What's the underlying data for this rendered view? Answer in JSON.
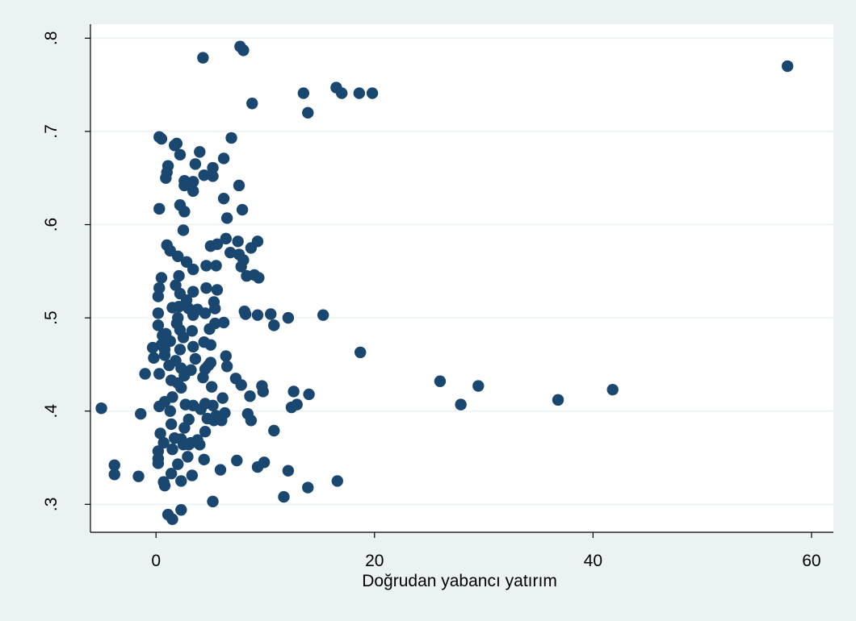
{
  "chart_data": {
    "type": "scatter",
    "title": "",
    "xlabel": "Doğrudan yabancı yatırım",
    "ylabel": "",
    "xlim": [
      -6,
      62
    ],
    "ylim": [
      0.27,
      0.815
    ],
    "xticks": [
      0,
      20,
      40,
      60
    ],
    "xtick_labels": [
      "0",
      "20",
      "40",
      "60"
    ],
    "yticks": [
      0.3,
      0.4,
      0.5,
      0.6,
      0.7,
      0.8
    ],
    "ytick_labels": [
      ".3",
      ".4",
      ".5",
      ".6",
      ".7",
      ".8"
    ],
    "grid": "horizontal",
    "colors": {
      "background": "#eaf2f3",
      "plot_background": "#ffffff",
      "marker": "#1a476f",
      "grid": "#eaf2f3"
    },
    "series": [
      {
        "points": [
          [
            57.8,
            0.77
          ],
          [
            4.3,
            0.779
          ],
          [
            7.7,
            0.791
          ],
          [
            8.0,
            0.787
          ],
          [
            16.5,
            0.747
          ],
          [
            17.0,
            0.741
          ],
          [
            18.6,
            0.741
          ],
          [
            19.8,
            0.741
          ],
          [
            13.5,
            0.741
          ],
          [
            8.8,
            0.73
          ],
          [
            13.9,
            0.72
          ],
          [
            0.3,
            0.694
          ],
          [
            0.5,
            0.692
          ],
          [
            6.9,
            0.693
          ],
          [
            1.9,
            0.687
          ],
          [
            1.7,
            0.685
          ],
          [
            4.0,
            0.678
          ],
          [
            2.2,
            0.675
          ],
          [
            6.2,
            0.671
          ],
          [
            3.6,
            0.665
          ],
          [
            1.1,
            0.663
          ],
          [
            5.2,
            0.661
          ],
          [
            1.0,
            0.656
          ],
          [
            0.9,
            0.65
          ],
          [
            4.4,
            0.653
          ],
          [
            5.2,
            0.652
          ],
          [
            2.6,
            0.647
          ],
          [
            3.4,
            0.646
          ],
          [
            2.6,
            0.642
          ],
          [
            7.6,
            0.642
          ],
          [
            3.4,
            0.636
          ],
          [
            6.2,
            0.628
          ],
          [
            2.2,
            0.621
          ],
          [
            0.3,
            0.617
          ],
          [
            2.6,
            0.614
          ],
          [
            7.9,
            0.616
          ],
          [
            6.5,
            0.607
          ],
          [
            2.5,
            0.594
          ],
          [
            6.4,
            0.585
          ],
          [
            7.5,
            0.582
          ],
          [
            9.3,
            0.582
          ],
          [
            1.0,
            0.578
          ],
          [
            5.0,
            0.577
          ],
          [
            5.6,
            0.579
          ],
          [
            8.7,
            0.575
          ],
          [
            1.3,
            0.572
          ],
          [
            6.8,
            0.57
          ],
          [
            7.6,
            0.568
          ],
          [
            2.0,
            0.566
          ],
          [
            8.0,
            0.562
          ],
          [
            2.8,
            0.56
          ],
          [
            7.8,
            0.555
          ],
          [
            4.6,
            0.556
          ],
          [
            5.5,
            0.556
          ],
          [
            3.4,
            0.552
          ],
          [
            2.1,
            0.545
          ],
          [
            8.3,
            0.545
          ],
          [
            9.0,
            0.546
          ],
          [
            9.4,
            0.543
          ],
          [
            0.5,
            0.543
          ],
          [
            1.8,
            0.535
          ],
          [
            0.3,
            0.532
          ],
          [
            4.6,
            0.532
          ],
          [
            5.6,
            0.53
          ],
          [
            2.2,
            0.526
          ],
          [
            3.4,
            0.528
          ],
          [
            0.2,
            0.523
          ],
          [
            2.8,
            0.519
          ],
          [
            5.3,
            0.517
          ],
          [
            1.5,
            0.511
          ],
          [
            2.1,
            0.512
          ],
          [
            3.0,
            0.51
          ],
          [
            3.8,
            0.509
          ],
          [
            5.4,
            0.51
          ],
          [
            0.2,
            0.505
          ],
          [
            8.1,
            0.507
          ],
          [
            8.2,
            0.504
          ],
          [
            9.3,
            0.503
          ],
          [
            10.5,
            0.504
          ],
          [
            15.3,
            0.503
          ],
          [
            12.1,
            0.5
          ],
          [
            2.0,
            0.5
          ],
          [
            3.4,
            0.503
          ],
          [
            4.5,
            0.505
          ],
          [
            6.2,
            0.495
          ],
          [
            5.4,
            0.494
          ],
          [
            1.9,
            0.494
          ],
          [
            0.2,
            0.492
          ],
          [
            10.8,
            0.492
          ],
          [
            4.9,
            0.488
          ],
          [
            2.2,
            0.487
          ],
          [
            0.9,
            0.483
          ],
          [
            3.3,
            0.486
          ],
          [
            0.6,
            0.481
          ],
          [
            2.5,
            0.479
          ],
          [
            1.3,
            0.475
          ],
          [
            4.4,
            0.474
          ],
          [
            0.5,
            0.471
          ],
          [
            5.0,
            0.471
          ],
          [
            3.4,
            0.469
          ],
          [
            -0.3,
            0.468
          ],
          [
            0.8,
            0.466
          ],
          [
            2.2,
            0.466
          ],
          [
            18.7,
            0.463
          ],
          [
            0.8,
            0.46
          ],
          [
            6.4,
            0.459
          ],
          [
            -0.2,
            0.457
          ],
          [
            3.6,
            0.456
          ],
          [
            1.8,
            0.454
          ],
          [
            5.0,
            0.452
          ],
          [
            1.2,
            0.449
          ],
          [
            4.8,
            0.449
          ],
          [
            6.5,
            0.448
          ],
          [
            2.3,
            0.446
          ],
          [
            3.2,
            0.444
          ],
          [
            4.5,
            0.445
          ],
          [
            -1.0,
            0.44
          ],
          [
            0.3,
            0.44
          ],
          [
            2.6,
            0.438
          ],
          [
            4.3,
            0.436
          ],
          [
            7.3,
            0.435
          ],
          [
            1.4,
            0.433
          ],
          [
            26.0,
            0.432
          ],
          [
            2.0,
            0.43
          ],
          [
            7.8,
            0.428
          ],
          [
            29.5,
            0.427
          ],
          [
            9.7,
            0.427
          ],
          [
            2.3,
            0.425
          ],
          [
            5.1,
            0.426
          ],
          [
            9.8,
            0.421
          ],
          [
            12.6,
            0.421
          ],
          [
            41.8,
            0.423
          ],
          [
            14.0,
            0.418
          ],
          [
            1.5,
            0.415
          ],
          [
            6.1,
            0.414
          ],
          [
            8.6,
            0.416
          ],
          [
            36.8,
            0.412
          ],
          [
            0.8,
            0.41
          ],
          [
            2.7,
            0.407
          ],
          [
            4.5,
            0.408
          ],
          [
            5.2,
            0.406
          ],
          [
            12.9,
            0.407
          ],
          [
            3.4,
            0.406
          ],
          [
            0.3,
            0.405
          ],
          [
            27.9,
            0.407
          ],
          [
            4.1,
            0.402
          ],
          [
            -5.0,
            0.403
          ],
          [
            12.4,
            0.404
          ],
          [
            1.3,
            0.4
          ],
          [
            6.3,
            0.398
          ],
          [
            8.4,
            0.397
          ],
          [
            -1.4,
            0.397
          ],
          [
            5.5,
            0.395
          ],
          [
            4.7,
            0.392
          ],
          [
            8.7,
            0.39
          ],
          [
            3.0,
            0.391
          ],
          [
            5.3,
            0.39
          ],
          [
            6.0,
            0.39
          ],
          [
            1.4,
            0.386
          ],
          [
            2.6,
            0.382
          ],
          [
            10.8,
            0.379
          ],
          [
            4.5,
            0.378
          ],
          [
            0.4,
            0.376
          ],
          [
            1.7,
            0.371
          ],
          [
            2.3,
            0.37
          ],
          [
            3.8,
            0.369
          ],
          [
            0.7,
            0.366
          ],
          [
            3.2,
            0.366
          ],
          [
            2.5,
            0.364
          ],
          [
            3.0,
            0.364
          ],
          [
            4.0,
            0.364
          ],
          [
            1.5,
            0.359
          ],
          [
            0.2,
            0.357
          ],
          [
            2.9,
            0.351
          ],
          [
            0.2,
            0.349
          ],
          [
            4.4,
            0.348
          ],
          [
            7.4,
            0.347
          ],
          [
            0.2,
            0.344
          ],
          [
            9.9,
            0.345
          ],
          [
            9.3,
            0.34
          ],
          [
            2.0,
            0.343
          ],
          [
            -3.8,
            0.342
          ],
          [
            5.9,
            0.337
          ],
          [
            12.1,
            0.336
          ],
          [
            1.4,
            0.333
          ],
          [
            -3.8,
            0.332
          ],
          [
            3.3,
            0.331
          ],
          [
            -1.6,
            0.33
          ],
          [
            16.6,
            0.325
          ],
          [
            0.7,
            0.324
          ],
          [
            2.3,
            0.325
          ],
          [
            0.8,
            0.32
          ],
          [
            13.9,
            0.318
          ],
          [
            11.7,
            0.308
          ],
          [
            5.2,
            0.303
          ],
          [
            2.3,
            0.294
          ],
          [
            1.1,
            0.289
          ],
          [
            1.5,
            0.284
          ]
        ]
      }
    ]
  }
}
